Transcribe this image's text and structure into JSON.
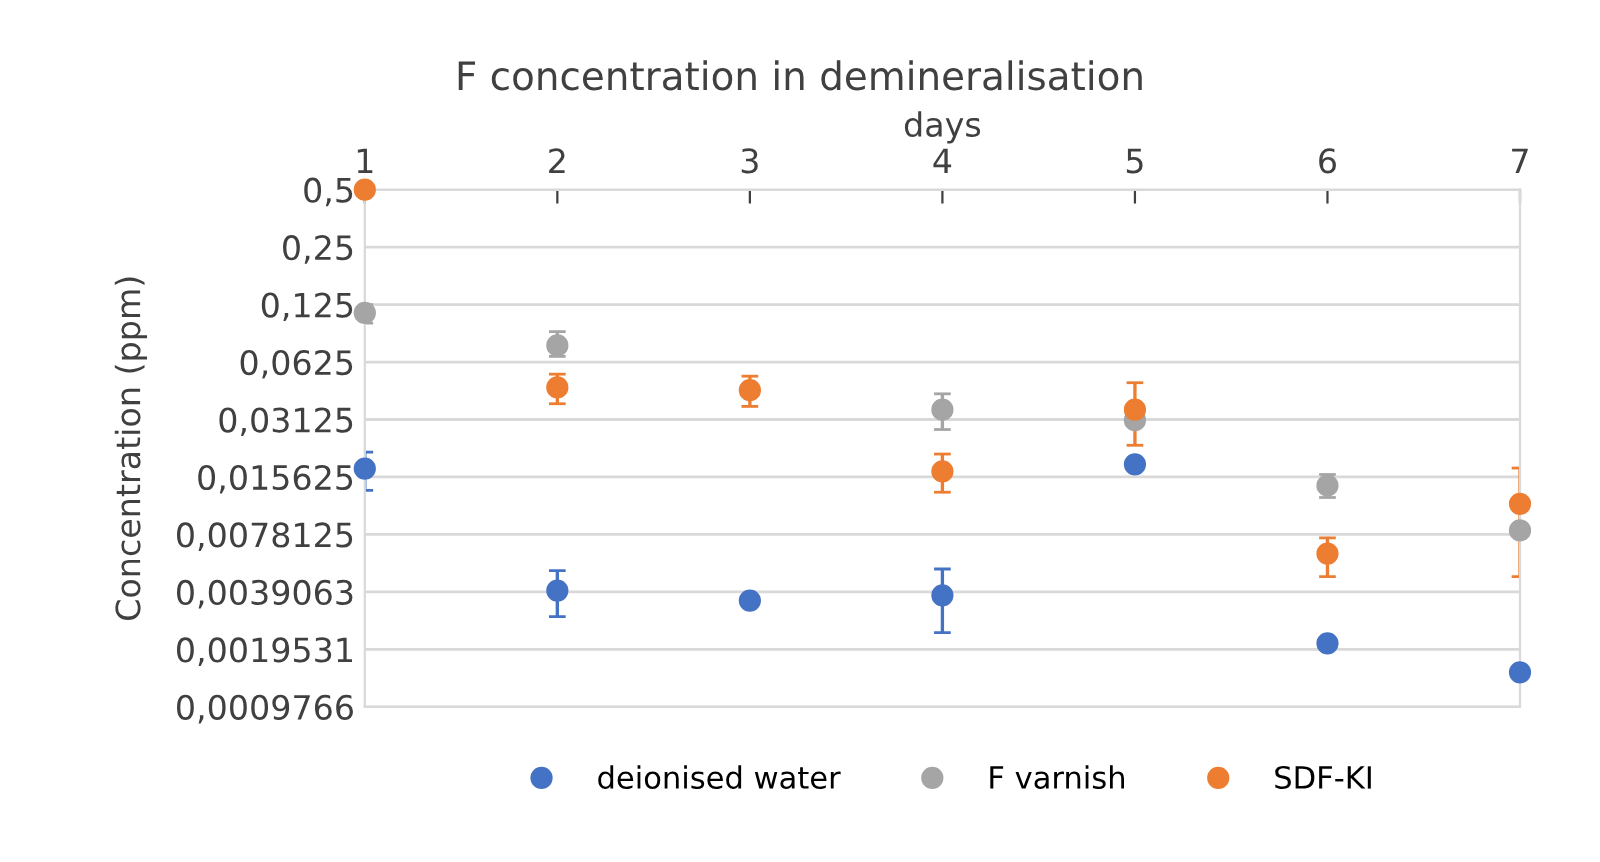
{
  "chart_data": {
    "type": "scatter",
    "title": "F concentration in demineralisation",
    "xlabel": "days",
    "ylabel": "Concentration (ppm)",
    "x": [
      1,
      2,
      3,
      4,
      5,
      6,
      7
    ],
    "series": [
      {
        "name": "deionised water",
        "color": "#4472c4",
        "values": [
          0.0173,
          0.00397,
          0.00352,
          0.00375,
          0.0182,
          0.0021,
          0.00148
        ],
        "errors": [
          [
            0.0133,
            0.0211
          ],
          [
            0.0029,
            0.00505
          ],
          null,
          [
            0.00239,
            0.00515
          ],
          null,
          null,
          null
        ]
      },
      {
        "name": "F varnish",
        "color": "#a5a5a5",
        "values": [
          0.113,
          0.0764,
          null,
          0.0352,
          0.031,
          0.0141,
          0.0082
        ],
        "errors": [
          [
            0.1,
            0.125
          ],
          [
            0.0669,
            0.0902
          ],
          null,
          [
            0.0277,
            0.0426
          ],
          null,
          [
            0.0122,
            0.0161
          ],
          null
        ]
      },
      {
        "name": "SDF-KI",
        "color": "#ed7d31",
        "values": [
          0.5,
          0.046,
          0.0445,
          0.0167,
          0.0352,
          0.0062,
          0.0113
        ],
        "errors": [
          null,
          [
            0.0378,
            0.054
          ],
          [
            0.0366,
            0.0527
          ],
          [
            0.013,
            0.0206
          ],
          [
            0.0229,
            0.0487
          ],
          [
            0.0047,
            0.0075
          ],
          [
            0.0047,
            0.0174
          ]
        ]
      }
    ],
    "log": "y",
    "xlim": [
      1,
      7
    ],
    "xticks": [
      1,
      2,
      3,
      4,
      5,
      6,
      7
    ],
    "ylim": [
      0.0009766,
      0.5
    ],
    "yticks": [
      {
        "value": 0.5,
        "label": "0,5"
      },
      {
        "value": 0.25,
        "label": "0,25"
      },
      {
        "value": 0.125,
        "label": "0,125"
      },
      {
        "value": 0.0625,
        "label": "0,0625"
      },
      {
        "value": 0.03125,
        "label": "0,03125"
      },
      {
        "value": 0.015625,
        "label": "0,015625"
      },
      {
        "value": 0.0078125,
        "label": "0,0078125"
      },
      {
        "value": 0.0039063,
        "label": "0,0039063"
      },
      {
        "value": 0.0019531,
        "label": "0,0019531"
      },
      {
        "value": 0.0009766,
        "label": "0,0009766"
      }
    ],
    "grid": "y",
    "legend": "bottom",
    "marker": "circle"
  }
}
